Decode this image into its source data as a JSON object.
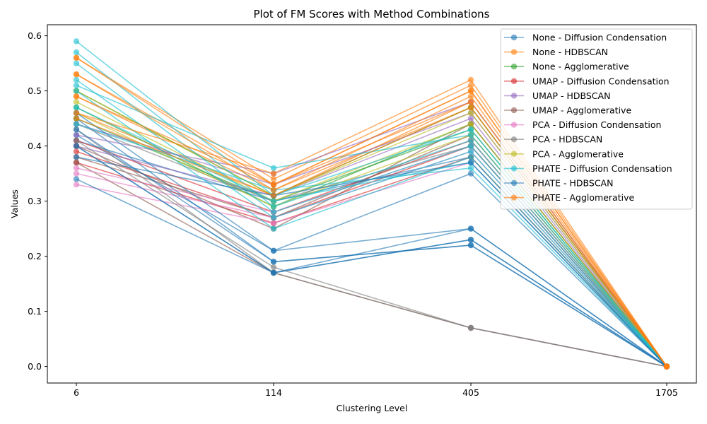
{
  "chart_data": {
    "type": "line",
    "title": "Plot of FM Scores with Method Combinations",
    "xlabel": "Clustering Level",
    "ylabel": "Values",
    "categories": [
      "6",
      "114",
      "405",
      "1705"
    ],
    "ylim": [
      -0.03,
      0.62
    ],
    "yticks": [
      "0.0",
      "0.1",
      "0.2",
      "0.3",
      "0.4",
      "0.5",
      "0.6"
    ],
    "grid": false,
    "legend_position": "top-right",
    "series": [
      {
        "name": "None - Diffusion Condensation",
        "color": "#1f77b4",
        "lines": [
          [
            0.4,
            0.17,
            0.23,
            0.0
          ],
          [
            0.42,
            0.21,
            0.25,
            0.0
          ],
          [
            0.45,
            0.19,
            0.22,
            0.0
          ],
          [
            0.41,
            0.3,
            0.38,
            0.0
          ]
        ]
      },
      {
        "name": "None - HDBSCAN",
        "color": "#ff7f0e",
        "lines": [
          [
            0.56,
            0.34,
            0.51,
            0.0
          ],
          [
            0.53,
            0.33,
            0.5,
            0.0
          ],
          [
            0.46,
            0.31,
            0.48,
            0.0
          ],
          [
            0.49,
            0.32,
            0.47,
            0.0
          ]
        ]
      },
      {
        "name": "None - Agglomerative",
        "color": "#2ca02c",
        "lines": [
          [
            0.47,
            0.29,
            0.44,
            0.0
          ],
          [
            0.5,
            0.31,
            0.47,
            0.0
          ],
          [
            0.45,
            0.3,
            0.43,
            0.0
          ]
        ]
      },
      {
        "name": "UMAP - Diffusion Condensation",
        "color": "#d62728",
        "lines": [
          [
            0.39,
            0.27,
            0.4,
            0.0
          ],
          [
            0.37,
            0.26,
            0.38,
            0.0
          ],
          [
            0.41,
            0.28,
            0.41,
            0.0
          ]
        ]
      },
      {
        "name": "UMAP - HDBSCAN",
        "color": "#9467bd",
        "lines": [
          [
            0.42,
            0.35,
            0.48,
            0.0
          ],
          [
            0.44,
            0.33,
            0.46,
            0.0
          ],
          [
            0.4,
            0.31,
            0.45,
            0.0
          ]
        ]
      },
      {
        "name": "UMAP - Agglomerative",
        "color": "#8c564b",
        "lines": [
          [
            0.37,
            0.17,
            0.07,
            0.0
          ],
          [
            0.4,
            0.25,
            0.44,
            0.0
          ],
          [
            0.38,
            0.27,
            0.42,
            0.0
          ]
        ]
      },
      {
        "name": "PCA - Diffusion Condensation",
        "color": "#e377c2",
        "lines": [
          [
            0.35,
            0.27,
            0.39,
            0.0
          ],
          [
            0.33,
            0.26,
            0.37,
            0.0
          ],
          [
            0.36,
            0.28,
            0.4,
            0.0
          ]
        ]
      },
      {
        "name": "PCA - HDBSCAN",
        "color": "#7f7f7f",
        "lines": [
          [
            0.41,
            0.18,
            0.07,
            0.0
          ],
          [
            0.43,
            0.17,
            0.07,
            0.0
          ],
          [
            0.44,
            0.3,
            0.4,
            0.0
          ]
        ]
      },
      {
        "name": "PCA - Agglomerative",
        "color": "#bcbd22",
        "lines": [
          [
            0.48,
            0.3,
            0.44,
            0.0
          ],
          [
            0.5,
            0.31,
            0.46,
            0.0
          ],
          [
            0.46,
            0.29,
            0.42,
            0.0
          ]
        ]
      },
      {
        "name": "PHATE - Diffusion Condensation",
        "color": "#17becf",
        "lines": [
          [
            0.59,
            0.31,
            0.43,
            0.0
          ],
          [
            0.57,
            0.29,
            0.41,
            0.0
          ],
          [
            0.55,
            0.28,
            0.4,
            0.0
          ],
          [
            0.52,
            0.27,
            0.39,
            0.0
          ],
          [
            0.5,
            0.25,
            0.38,
            0.0
          ],
          [
            0.47,
            0.3,
            0.37,
            0.0
          ],
          [
            0.44,
            0.32,
            0.36,
            0.0
          ],
          [
            0.51,
            0.36,
            0.42,
            0.0
          ]
        ]
      },
      {
        "name": "PHATE - HDBSCAN",
        "color": "#1f77b4",
        "lines": [
          [
            0.4,
            0.17,
            0.25,
            0.0
          ],
          [
            0.34,
            0.17,
            0.23,
            0.0
          ],
          [
            0.43,
            0.19,
            0.22,
            0.0
          ],
          [
            0.46,
            0.21,
            0.35,
            0.0
          ],
          [
            0.38,
            0.31,
            0.37,
            0.0
          ]
        ]
      },
      {
        "name": "PHATE - Agglomerative",
        "color": "#ff7f0e",
        "lines": [
          [
            0.46,
            0.35,
            0.52,
            0.0
          ],
          [
            0.56,
            0.33,
            0.5,
            0.0
          ],
          [
            0.53,
            0.32,
            0.49,
            0.0
          ],
          [
            0.45,
            0.31,
            0.47,
            0.0
          ],
          [
            0.49,
            0.33,
            0.48,
            0.0
          ]
        ]
      }
    ]
  }
}
